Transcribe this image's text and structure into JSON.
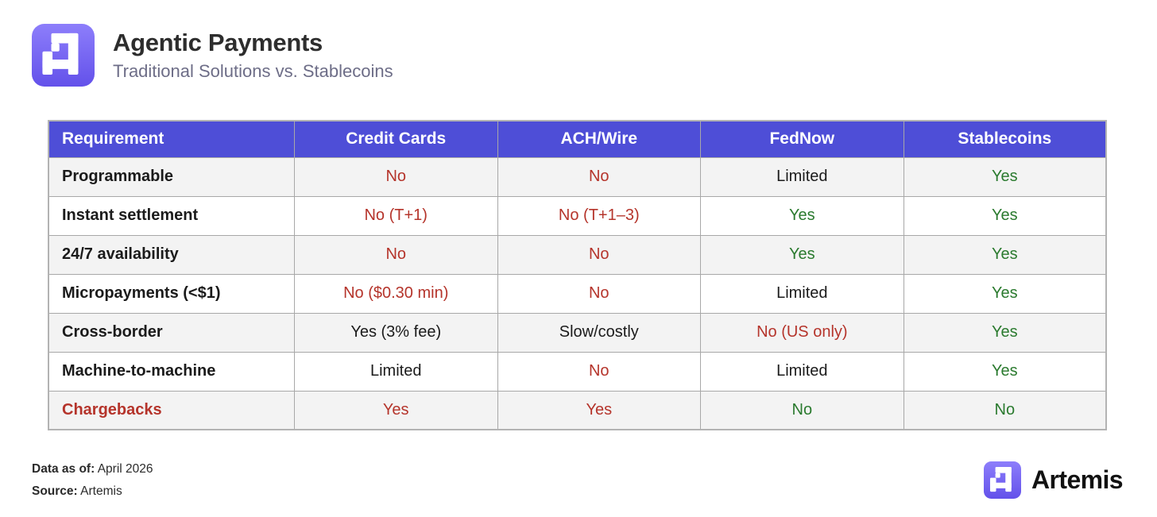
{
  "header": {
    "title": "Agentic Payments",
    "subtitle": "Traditional Solutions vs. Stablecoins"
  },
  "table": {
    "columns": [
      "Requirement",
      "Credit Cards",
      "ACH/Wire",
      "FedNow",
      "Stablecoins"
    ],
    "rows": [
      {
        "label": "Programmable",
        "label_tone": "default",
        "cells": [
          {
            "text": "No",
            "tone": "negative"
          },
          {
            "text": "No",
            "tone": "negative"
          },
          {
            "text": "Limited",
            "tone": "neutral"
          },
          {
            "text": "Yes",
            "tone": "positive"
          }
        ]
      },
      {
        "label": "Instant settlement",
        "label_tone": "default",
        "cells": [
          {
            "text": "No (T+1)",
            "tone": "negative"
          },
          {
            "text": "No (T+1–3)",
            "tone": "negative"
          },
          {
            "text": "Yes",
            "tone": "positive"
          },
          {
            "text": "Yes",
            "tone": "positive"
          }
        ]
      },
      {
        "label": "24/7 availability",
        "label_tone": "default",
        "cells": [
          {
            "text": "No",
            "tone": "negative"
          },
          {
            "text": "No",
            "tone": "negative"
          },
          {
            "text": "Yes",
            "tone": "positive"
          },
          {
            "text": "Yes",
            "tone": "positive"
          }
        ]
      },
      {
        "label": "Micropayments (<$1)",
        "label_tone": "default",
        "cells": [
          {
            "text": "No ($0.30 min)",
            "tone": "negative"
          },
          {
            "text": "No",
            "tone": "negative"
          },
          {
            "text": "Limited",
            "tone": "neutral"
          },
          {
            "text": "Yes",
            "tone": "positive"
          }
        ]
      },
      {
        "label": "Cross-border",
        "label_tone": "default",
        "cells": [
          {
            "text": "Yes (3% fee)",
            "tone": "neutral"
          },
          {
            "text": "Slow/costly",
            "tone": "neutral"
          },
          {
            "text": "No (US only)",
            "tone": "negative"
          },
          {
            "text": "Yes",
            "tone": "positive"
          }
        ]
      },
      {
        "label": "Machine-to-machine",
        "label_tone": "default",
        "cells": [
          {
            "text": "Limited",
            "tone": "neutral"
          },
          {
            "text": "No",
            "tone": "negative"
          },
          {
            "text": "Limited",
            "tone": "neutral"
          },
          {
            "text": "Yes",
            "tone": "positive"
          }
        ]
      },
      {
        "label": "Chargebacks",
        "label_tone": "negative",
        "cells": [
          {
            "text": "Yes",
            "tone": "negative"
          },
          {
            "text": "Yes",
            "tone": "negative"
          },
          {
            "text": "No",
            "tone": "positive"
          },
          {
            "text": "No",
            "tone": "positive"
          }
        ]
      }
    ]
  },
  "footer": {
    "data_as_of_label": "Data as of:",
    "data_as_of_value": "April 2026",
    "source_label": "Source:",
    "source_value": "Artemis",
    "brand_name": "Artemis"
  },
  "colors": {
    "header_bg": "#4e4ed7",
    "accent_purple": "#6c5cf0",
    "tones": {
      "negative": "#b5342b",
      "positive": "#2a7a2e",
      "neutral": "#1b1b1b"
    }
  },
  "chart_data": {
    "type": "table",
    "title": "Agentic Payments",
    "subtitle": "Traditional Solutions vs. Stablecoins",
    "columns": [
      "Requirement",
      "Credit Cards",
      "ACH/Wire",
      "FedNow",
      "Stablecoins"
    ],
    "rows": [
      [
        "Programmable",
        "No",
        "No",
        "Limited",
        "Yes"
      ],
      [
        "Instant settlement",
        "No (T+1)",
        "No (T+1–3)",
        "Yes",
        "Yes"
      ],
      [
        "24/7 availability",
        "No",
        "No",
        "Yes",
        "Yes"
      ],
      [
        "Micropayments (<$1)",
        "No ($0.30 min)",
        "No",
        "Limited",
        "Yes"
      ],
      [
        "Cross-border",
        "Yes (3% fee)",
        "Slow/costly",
        "No (US only)",
        "Yes"
      ],
      [
        "Machine-to-machine",
        "Limited",
        "No",
        "Limited",
        "Yes"
      ],
      [
        "Chargebacks",
        "Yes",
        "Yes",
        "No",
        "No"
      ]
    ]
  }
}
